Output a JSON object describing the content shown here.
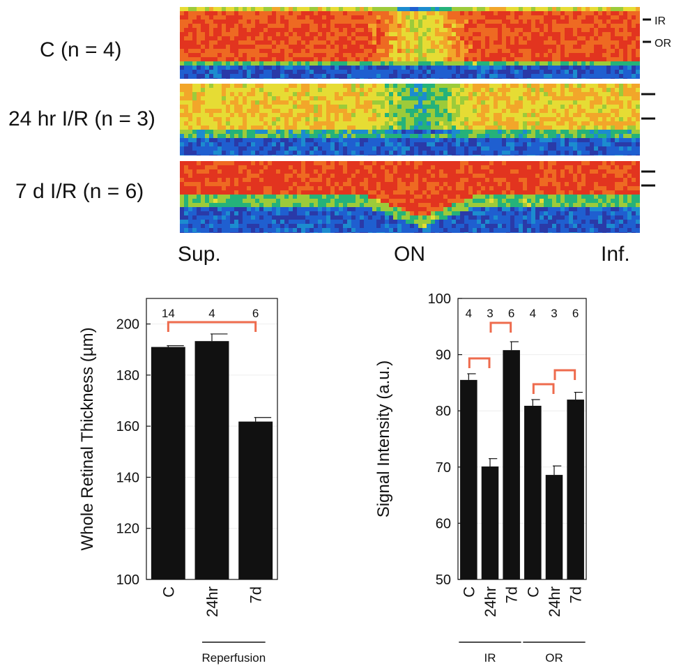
{
  "heatmap": {
    "rows": [
      {
        "label": "C (n = 4)"
      },
      {
        "label": "24 hr I/R (n = 3)"
      },
      {
        "label": "7 d I/R (n = 6)"
      }
    ],
    "layer_marks": [
      "IR",
      "OR"
    ],
    "positions": [
      "Sup.",
      "ON",
      "Inf."
    ]
  },
  "chart_data": [
    {
      "type": "bar",
      "categories": [
        "C",
        "24hr",
        "7d"
      ],
      "values": [
        191,
        193.3,
        161.8
      ],
      "errors": [
        0.5,
        2.8,
        1.6
      ],
      "n": [
        "14",
        "4",
        "6"
      ],
      "ylabel": "Whole Retinal Thickness (µm)",
      "ylim": [
        100,
        210
      ],
      "yticks": [
        100,
        120,
        140,
        160,
        180,
        200
      ],
      "group_label": "Reperfusion",
      "significance_brackets": [
        [
          "C",
          "7d"
        ]
      ],
      "grid": true,
      "colors": {
        "bar": "#111111",
        "bracket": "#ee6b4d",
        "grid": "#eeeeee"
      }
    },
    {
      "type": "bar",
      "categories": [
        "C",
        "24hr",
        "7d",
        "C",
        "24hr",
        "7d"
      ],
      "values": [
        85.5,
        70.1,
        90.8,
        80.9,
        68.6,
        82
      ],
      "errors": [
        1.1,
        1.4,
        1.5,
        1.1,
        1.6,
        1.3
      ],
      "n": [
        "4",
        "3",
        "6",
        "4",
        "3",
        "6"
      ],
      "ylabel": "Signal Intensity (a.u.)",
      "ylim": [
        50,
        100
      ],
      "yticks": [
        50,
        60,
        70,
        80,
        90,
        100
      ],
      "groups": [
        {
          "label": "IR",
          "categories": [
            "C",
            "24hr",
            "7d"
          ]
        },
        {
          "label": "OR",
          "categories": [
            "C",
            "24hr",
            "7d"
          ]
        }
      ],
      "significance_brackets": [
        [
          "IR C",
          "IR 24hr"
        ],
        [
          "IR 24hr",
          "IR 7d"
        ],
        [
          "OR C",
          "OR 24hr"
        ],
        [
          "OR 24hr",
          "OR 7d"
        ]
      ],
      "grid": true,
      "colors": {
        "bar": "#111111",
        "bracket": "#ee6b4d",
        "grid": "#eeeeee"
      }
    }
  ],
  "colors": {
    "heat_scale": [
      "#2a3aa8",
      "#1f5fd0",
      "#1c8ccf",
      "#25b27a",
      "#9ccb3a",
      "#e6dc34",
      "#f2a62a",
      "#ee6a22",
      "#e2341f"
    ]
  }
}
